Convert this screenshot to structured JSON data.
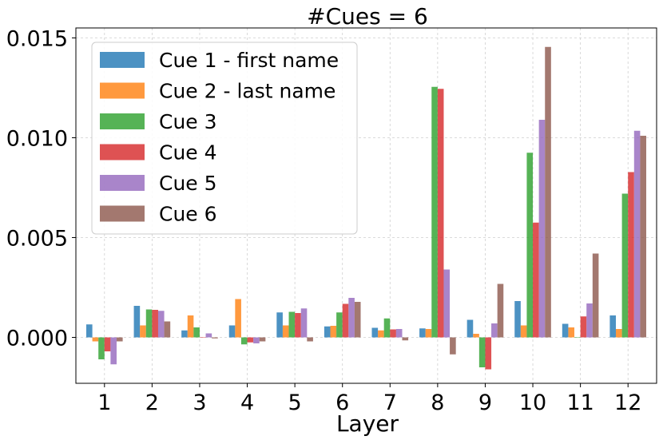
{
  "chart_data": {
    "type": "bar",
    "title": "#Cues = 6",
    "xlabel": "Layer",
    "ylabel": "",
    "categories": [
      "1",
      "2",
      "3",
      "4",
      "5",
      "6",
      "7",
      "8",
      "9",
      "10",
      "11",
      "12"
    ],
    "ylim": [
      -0.0023,
      0.0155
    ],
    "yticks": [
      "0.000",
      "0.005",
      "0.010",
      "0.015"
    ],
    "ytick_values": [
      0,
      0.005,
      0.01,
      0.015
    ],
    "grid": true,
    "legend_position": "top-left",
    "series": [
      {
        "name": "Cue 1 - first name",
        "color": "#1f77b4",
        "values": [
          0.00065,
          0.00158,
          0.00035,
          0.0006,
          0.00125,
          0.00055,
          0.00048,
          0.00045,
          0.00088,
          0.00182,
          0.00068,
          0.0011
        ]
      },
      {
        "name": "Cue 2 - last name",
        "color": "#ff7f0e",
        "values": [
          -0.0002,
          0.0006,
          0.0011,
          0.00192,
          0.0006,
          0.00058,
          0.00035,
          0.00042,
          0.00018,
          0.0006,
          0.0005,
          0.00042
        ]
      },
      {
        "name": "Cue 3",
        "color": "#2ca02c",
        "values": [
          -0.0011,
          0.0014,
          0.0005,
          -0.00035,
          0.00128,
          0.00125,
          0.00095,
          0.01255,
          -0.0015,
          0.00925,
          0.0,
          0.0072
        ]
      },
      {
        "name": "Cue 4",
        "color": "#d62728",
        "values": [
          -0.0007,
          0.00138,
          0.0,
          -0.00025,
          0.00122,
          0.00168,
          0.0004,
          0.01245,
          -0.0016,
          0.00575,
          0.00105,
          0.00828
        ]
      },
      {
        "name": "Cue 5",
        "color": "#9467bd",
        "values": [
          -0.00135,
          0.00133,
          0.0002,
          -0.0003,
          0.00145,
          0.00198,
          0.00042,
          0.0034,
          0.0007,
          0.0109,
          0.0017,
          0.01035
        ]
      },
      {
        "name": "Cue 6",
        "color": "#8c564b",
        "values": [
          -0.0002,
          0.0008,
          -5e-05,
          -0.0002,
          -0.0002,
          0.00178,
          -0.00015,
          -0.00085,
          0.00268,
          0.01455,
          0.0042,
          0.0101
        ]
      }
    ]
  }
}
